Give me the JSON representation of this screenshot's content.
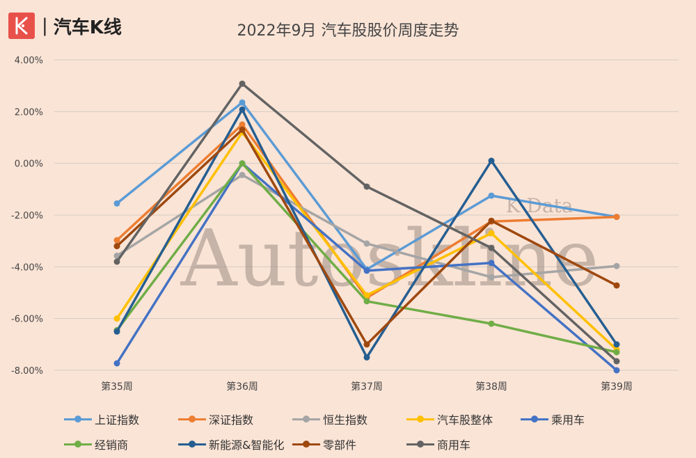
{
  "brand": {
    "separator": "|",
    "name": "汽车K线"
  },
  "watermark": {
    "main": "Autoskline",
    "sub": "K Data"
  },
  "chart_data": {
    "type": "line",
    "title": "2022年9月 汽车股股价周度走势",
    "categories": [
      "第35周",
      "第36周",
      "第37周",
      "第38周",
      "第39周"
    ],
    "y_ticks": [
      "4.00%",
      "2.00%",
      "0.00%",
      "-2.00%",
      "-4.00%",
      "-6.00%",
      "-8.00%"
    ],
    "ylim": [
      -8,
      4
    ],
    "grid": true,
    "legend_position": "bottom",
    "series": [
      {
        "name": "上证指数",
        "color": "#5b9bd5",
        "values": [
          -1.55,
          2.35,
          -4.1,
          -1.25,
          -2.07
        ]
      },
      {
        "name": "深证指数",
        "color": "#ed7d31",
        "values": [
          -2.97,
          1.5,
          -5.2,
          -2.25,
          -2.07
        ]
      },
      {
        "name": "恒生指数",
        "color": "#a5a5a5",
        "values": [
          -3.57,
          -0.45,
          -3.1,
          -4.4,
          -3.97
        ]
      },
      {
        "name": "汽车股整体",
        "color": "#ffc000",
        "values": [
          -6.0,
          1.2,
          -5.1,
          -2.7,
          -7.2
        ]
      },
      {
        "name": "乘用车",
        "color": "#4472c4",
        "values": [
          -7.73,
          0.0,
          -4.15,
          -3.85,
          -8.0
        ]
      },
      {
        "name": "经销商",
        "color": "#70ad47",
        "values": [
          -6.45,
          0.0,
          -5.33,
          -6.2,
          -7.3
        ]
      },
      {
        "name": "新能源&智能化",
        "color": "#255e91",
        "values": [
          -6.5,
          2.08,
          -7.5,
          0.1,
          -7.0
        ]
      },
      {
        "name": "零部件",
        "color": "#9e480e",
        "values": [
          -3.2,
          1.3,
          -7.0,
          -2.22,
          -4.72
        ]
      },
      {
        "name": "商用车",
        "color": "#636363",
        "values": [
          -3.8,
          3.08,
          -0.9,
          -3.27,
          -7.65
        ]
      }
    ]
  }
}
